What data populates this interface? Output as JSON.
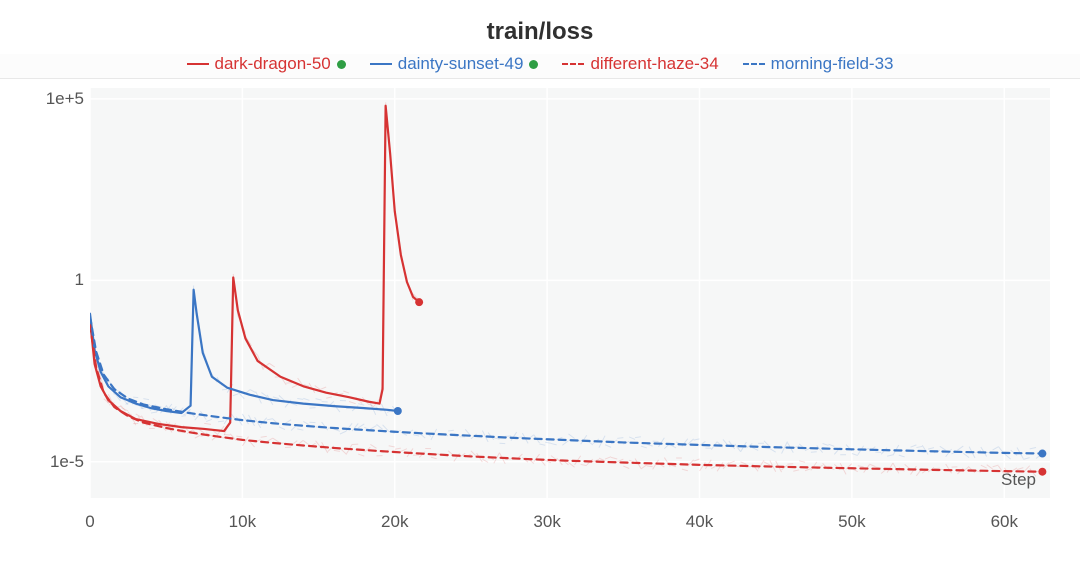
{
  "chart": {
    "type": "line",
    "title": "train/loss",
    "title_fontsize": 24,
    "title_color": "#303030",
    "label_fontsize": 17,
    "tick_color": "#555555",
    "background_color": "#ffffff",
    "plot_bg_color": "#f6f7f7",
    "grid_color": "#ffffff",
    "x_title": "Step",
    "x_scale": "linear",
    "y_scale": "log",
    "xlim": [
      0,
      63000
    ],
    "ylim": [
      1e-06,
      200000
    ],
    "y_ticks": [
      {
        "value": 1e-05,
        "label": "1e-5"
      },
      {
        "value": 1,
        "label": "1"
      },
      {
        "value": 100000.0,
        "label": "1e+5"
      }
    ],
    "x_ticks": [
      {
        "value": 0,
        "label": "0"
      },
      {
        "value": 10000,
        "label": "10k"
      },
      {
        "value": 20000,
        "label": "20k"
      },
      {
        "value": 30000,
        "label": "30k"
      },
      {
        "value": 40000,
        "label": "40k"
      },
      {
        "value": 50000,
        "label": "50k"
      },
      {
        "value": 60000,
        "label": "60k"
      }
    ],
    "line_width": 2.2,
    "end_marker_radius": 4,
    "series": [
      {
        "id": "dark-dragon-50",
        "label": "dark-dragon-50",
        "color": "#d63333",
        "dash": "solid",
        "status_dot": "#2f9e44",
        "data": [
          [
            0,
            0.08
          ],
          [
            300,
            0.005
          ],
          [
            700,
            0.0012
          ],
          [
            1200,
            0.0005
          ],
          [
            2000,
            0.00025
          ],
          [
            3000,
            0.00015
          ],
          [
            4500,
            0.00011
          ],
          [
            6000,
            9e-05
          ],
          [
            7500,
            8e-05
          ],
          [
            8800,
            7e-05
          ],
          [
            9200,
            0.00012
          ],
          [
            9400,
            1.2
          ],
          [
            9700,
            0.15
          ],
          [
            10200,
            0.025
          ],
          [
            11000,
            0.006
          ],
          [
            12500,
            0.0022
          ],
          [
            14000,
            0.0012
          ],
          [
            15500,
            0.0008
          ],
          [
            17000,
            0.0006
          ],
          [
            18300,
            0.00045
          ],
          [
            19000,
            0.0004
          ],
          [
            19200,
            0.001
          ],
          [
            19400,
            65000
          ],
          [
            19700,
            3000
          ],
          [
            20000,
            80
          ],
          [
            20400,
            5
          ],
          [
            20800,
            0.9
          ],
          [
            21200,
            0.35
          ],
          [
            21600,
            0.25
          ]
        ]
      },
      {
        "id": "dainty-sunset-49",
        "label": "dainty-sunset-49",
        "color": "#3b76c4",
        "dash": "solid",
        "status_dot": "#2f9e44",
        "data": [
          [
            0,
            0.12
          ],
          [
            300,
            0.012
          ],
          [
            700,
            0.003
          ],
          [
            1200,
            0.0012
          ],
          [
            2000,
            0.0006
          ],
          [
            3000,
            0.0004
          ],
          [
            4000,
            0.0003
          ],
          [
            5000,
            0.00025
          ],
          [
            6000,
            0.00022
          ],
          [
            6600,
            0.00035
          ],
          [
            6800,
            0.55
          ],
          [
            7000,
            0.12
          ],
          [
            7400,
            0.01
          ],
          [
            8000,
            0.0022
          ],
          [
            9000,
            0.0011
          ],
          [
            10500,
            0.0007
          ],
          [
            12000,
            0.0005
          ],
          [
            14000,
            0.0004
          ],
          [
            16000,
            0.00034
          ],
          [
            18000,
            0.0003
          ],
          [
            19500,
            0.00027
          ],
          [
            20200,
            0.00025
          ]
        ]
      },
      {
        "id": "different-haze-34",
        "label": "different-haze-34",
        "color": "#d63333",
        "dash": "dashed",
        "status_dot": null,
        "data": [
          [
            0,
            0.06
          ],
          [
            400,
            0.004
          ],
          [
            900,
            0.0008
          ],
          [
            1600,
            0.00032
          ],
          [
            2500,
            0.00018
          ],
          [
            3500,
            0.00012
          ],
          [
            5000,
            8.5e-05
          ],
          [
            6500,
            6.5e-05
          ],
          [
            8000,
            5.2e-05
          ],
          [
            10000,
            4e-05
          ],
          [
            12000,
            3.3e-05
          ],
          [
            14000,
            2.8e-05
          ],
          [
            16000,
            2.4e-05
          ],
          [
            18000,
            2.1e-05
          ],
          [
            20000,
            1.85e-05
          ],
          [
            22000,
            1.65e-05
          ],
          [
            25000,
            1.4e-05
          ],
          [
            28000,
            1.22e-05
          ],
          [
            31000,
            1.08e-05
          ],
          [
            35000,
            9.5e-06
          ],
          [
            40000,
            8.2e-06
          ],
          [
            45000,
            7.3e-06
          ],
          [
            50000,
            6.6e-06
          ],
          [
            55000,
            6e-06
          ],
          [
            60000,
            5.5e-06
          ],
          [
            62500,
            5.3e-06
          ]
        ]
      },
      {
        "id": "morning-field-33",
        "label": "morning-field-33",
        "color": "#3b76c4",
        "dash": "dashed",
        "status_dot": null,
        "data": [
          [
            0,
            0.1
          ],
          [
            400,
            0.011
          ],
          [
            900,
            0.0025
          ],
          [
            1600,
            0.001
          ],
          [
            2500,
            0.00055
          ],
          [
            3500,
            0.00038
          ],
          [
            5000,
            0.00028
          ],
          [
            6500,
            0.00022
          ],
          [
            8000,
            0.00018
          ],
          [
            10000,
            0.00014
          ],
          [
            12000,
            0.000115
          ],
          [
            14000,
            9.8e-05
          ],
          [
            16000,
            8.5e-05
          ],
          [
            18000,
            7.5e-05
          ],
          [
            20000,
            6.7e-05
          ],
          [
            22000,
            6e-05
          ],
          [
            25000,
            5.2e-05
          ],
          [
            28000,
            4.5e-05
          ],
          [
            31000,
            4e-05
          ],
          [
            35000,
            3.4e-05
          ],
          [
            40000,
            2.9e-05
          ],
          [
            45000,
            2.5e-05
          ],
          [
            50000,
            2.2e-05
          ],
          [
            55000,
            1.95e-05
          ],
          [
            60000,
            1.75e-05
          ],
          [
            62500,
            1.68e-05
          ]
        ]
      }
    ]
  }
}
